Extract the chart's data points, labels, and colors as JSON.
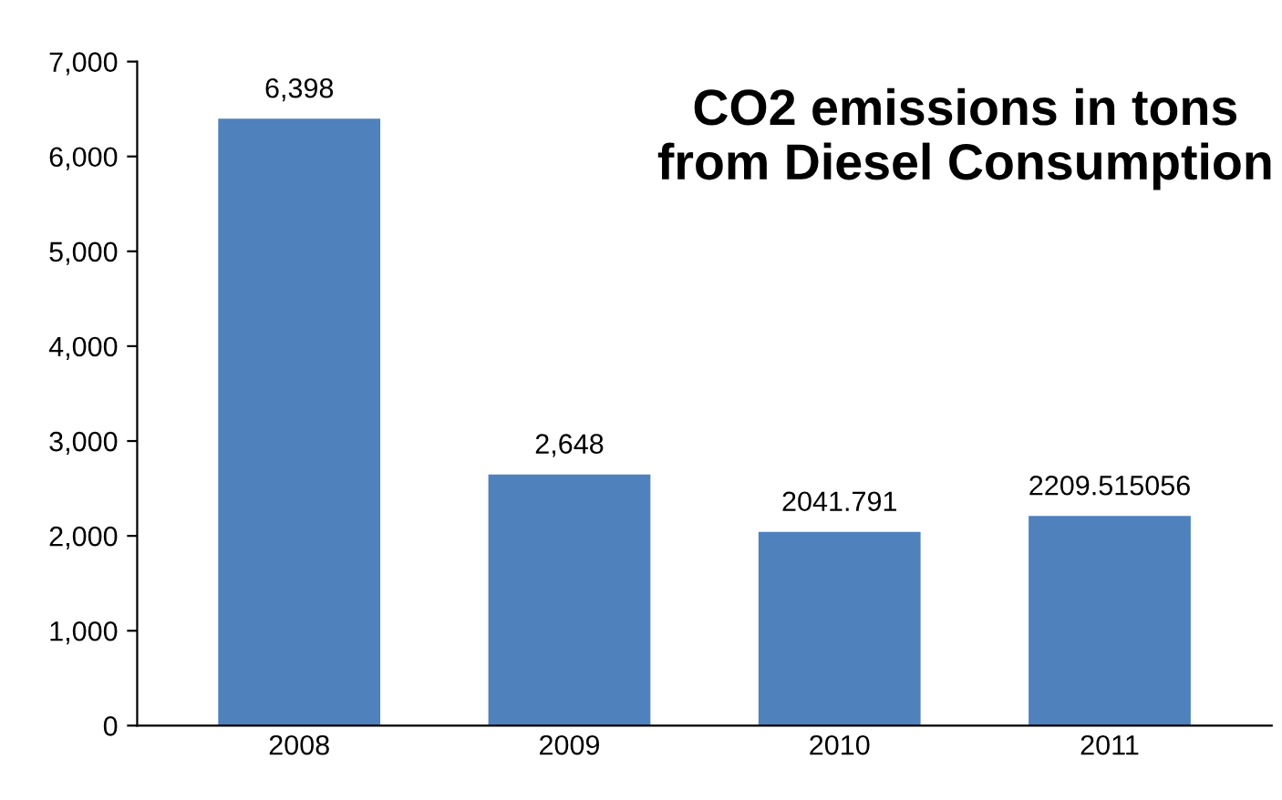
{
  "chart_data": {
    "type": "bar",
    "title": "CO2 emissions in tons from Diesel Consumption",
    "categories": [
      "2008",
      "2009",
      "2010",
      "2011"
    ],
    "values": [
      6398,
      2648,
      2041.791,
      2209.515056
    ],
    "value_labels": [
      "6,398",
      "2,648",
      "2041.791",
      "2209.515056"
    ],
    "color": "#4f81bd",
    "ylim": [
      0,
      7000
    ],
    "yticks": [
      0,
      {
        "value": 1000,
        "label": "1,000"
      },
      {
        "value": 2000,
        "label": "2,000"
      },
      {
        "value": 3000,
        "label": "3,000"
      },
      {
        "value": 4000,
        "label": "4,000"
      },
      {
        "value": 5000,
        "label": "5,000"
      },
      {
        "value": 6000,
        "label": "6,000"
      },
      {
        "value": 7000,
        "label": "7,000"
      }
    ],
    "grid": false,
    "legend": false
  }
}
